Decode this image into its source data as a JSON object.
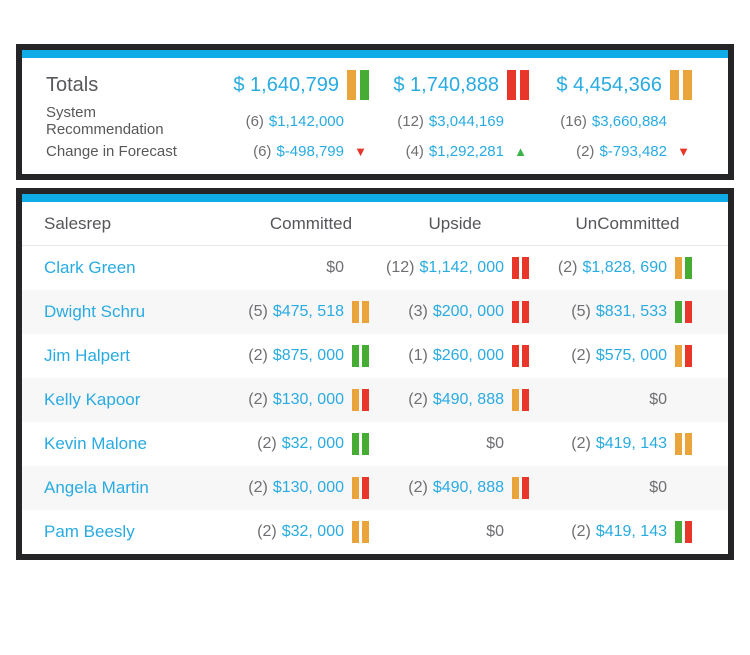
{
  "colors": {
    "accent_bar": "#0FACE8",
    "link_blue": "#29ABE2",
    "bar_orange": "#E9A43C",
    "bar_green": "#46AC34",
    "bar_red": "#E8362B",
    "arrow_up_green": "#39B54A",
    "label_gray": "#58585B",
    "muted_gray": "#6E6F72",
    "alt_row_bg": "#F7F7F8",
    "panel_border": "#252528"
  },
  "icons": {
    "arrow_up": "▲",
    "arrow_down": "▼"
  },
  "totals_panel": {
    "rows": [
      {
        "key": "totals",
        "label": "Totals",
        "cells": [
          {
            "value": "$ 1,640,799",
            "bars": [
              "orange",
              "green"
            ]
          },
          {
            "value": "$ 1,740,888",
            "bars": [
              "red",
              "red"
            ]
          },
          {
            "value": "$ 4,454,366",
            "bars": [
              "orange",
              "orange"
            ]
          }
        ]
      },
      {
        "key": "system-recommendation",
        "label": "System  Recommendation",
        "cells": [
          {
            "count": "(6)",
            "value": "$1,142,000"
          },
          {
            "count": "(12)",
            "value": "$3,044,169"
          },
          {
            "count": "(16)",
            "value": "$3,660,884"
          }
        ]
      },
      {
        "key": "change-in-forecast",
        "label": "Change in Forecast",
        "cells": [
          {
            "count": "(6)",
            "value": "$-498,799",
            "arrow": "down"
          },
          {
            "count": "(4)",
            "value": "$1,292,281",
            "arrow": "up"
          },
          {
            "count": "(2)",
            "value": "$-793,482",
            "arrow": "down"
          }
        ]
      }
    ]
  },
  "table": {
    "headers": [
      "Salesrep",
      "Committed",
      "Upside",
      "UnCommitted"
    ],
    "rows": [
      {
        "name": "Clark Green",
        "cells": [
          {
            "zero": "$0"
          },
          {
            "count": "(12)",
            "value": "$1,142, 000",
            "bars": [
              "red",
              "red"
            ]
          },
          {
            "count": "(2)",
            "value": "$1,828, 690",
            "bars": [
              "orange",
              "green"
            ]
          }
        ]
      },
      {
        "name": "Dwight Schru",
        "cells": [
          {
            "count": "(5)",
            "value": "$475, 518",
            "bars": [
              "orange",
              "orange"
            ]
          },
          {
            "count": "(3)",
            "value": "$200, 000",
            "bars": [
              "red",
              "red"
            ]
          },
          {
            "count": "(5)",
            "value": "$831, 533",
            "bars": [
              "green",
              "red"
            ]
          }
        ]
      },
      {
        "name": "Jim Halpert",
        "cells": [
          {
            "count": "(2)",
            "value": "$875, 000",
            "bars": [
              "green",
              "green"
            ]
          },
          {
            "count": "(1)",
            "value": "$260, 000",
            "bars": [
              "red",
              "red"
            ]
          },
          {
            "count": "(2)",
            "value": "$575, 000",
            "bars": [
              "orange",
              "red"
            ]
          }
        ]
      },
      {
        "name": "Kelly Kapoor",
        "cells": [
          {
            "count": "(2)",
            "value": "$130, 000",
            "bars": [
              "orange",
              "red"
            ]
          },
          {
            "count": "(2)",
            "value": "$490, 888",
            "bars": [
              "orange",
              "red"
            ]
          },
          {
            "zero": "$0"
          }
        ]
      },
      {
        "name": "Kevin Malone",
        "cells": [
          {
            "count": "(2)",
            "value": "$32, 000",
            "bars": [
              "green",
              "green"
            ]
          },
          {
            "zero": "$0"
          },
          {
            "count": "(2)",
            "value": "$419, 143",
            "bars": [
              "orange",
              "orange"
            ]
          }
        ]
      },
      {
        "name": "Angela Martin",
        "cells": [
          {
            "count": "(2)",
            "value": "$130, 000",
            "bars": [
              "orange",
              "red"
            ]
          },
          {
            "count": "(2)",
            "value": "$490, 888",
            "bars": [
              "orange",
              "red"
            ]
          },
          {
            "zero": "$0"
          }
        ]
      },
      {
        "name": "Pam Beesly",
        "cells": [
          {
            "count": "(2)",
            "value": "$32, 000",
            "bars": [
              "orange",
              "orange"
            ]
          },
          {
            "zero": "$0"
          },
          {
            "count": "(2)",
            "value": "$419, 143",
            "bars": [
              "green",
              "red"
            ]
          }
        ]
      }
    ]
  }
}
